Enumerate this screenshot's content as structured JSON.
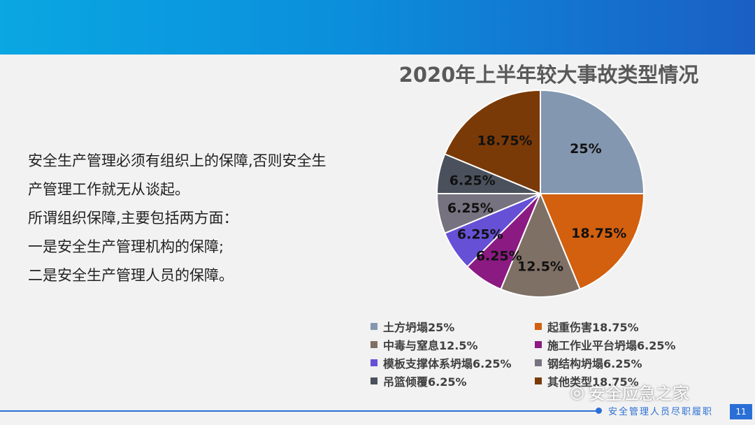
{
  "body_text": [
    "安全生产管理必须有组织上的保障,否则安全生",
    "产管理工作就无从谈起。",
    "所谓组织保障,主要包括两方面：",
    "一是安全生产管理机构的保障;",
    "二是安全生产管理人员的保障。"
  ],
  "chart_data": {
    "type": "pie",
    "title": "2020年上半年较大事故类型情况",
    "categories": [
      "土方坍塌",
      "起重伤害",
      "中毒与窒息",
      "施工作业平台坍塌",
      "模板支撑体系坍塌",
      "钢结构坍塌",
      "吊篮倾覆",
      "其他类型"
    ],
    "values": [
      25,
      18.75,
      12.5,
      6.25,
      6.25,
      6.25,
      6.25,
      18.75
    ],
    "data_labels": [
      "25%",
      "18.75%",
      "12.5%",
      "6.25%",
      "6.25%",
      "6.25%",
      "6.25%",
      "18.75%"
    ],
    "legend_labels": [
      "土方坍塌25%",
      "起重伤害18.75%",
      "中毒与窒息12.5%",
      "施工作业平台坍塌6.25%",
      "模板支撑体系坍塌6.25%",
      "钢结构坍塌6.25%",
      "吊篮倾覆6.25%",
      "其他类型18.75%"
    ],
    "colors": [
      "#8497b0",
      "#d2600f",
      "#7f7066",
      "#8b1a82",
      "#6650d6",
      "#76727f",
      "#4b515c",
      "#7a3a07"
    ],
    "legend_position": "bottom",
    "start_angle": "top, clockwise"
  },
  "footer": {
    "text": "安全管理人员尽职履职",
    "page_number": "11",
    "watermark": "安全应急之家"
  }
}
